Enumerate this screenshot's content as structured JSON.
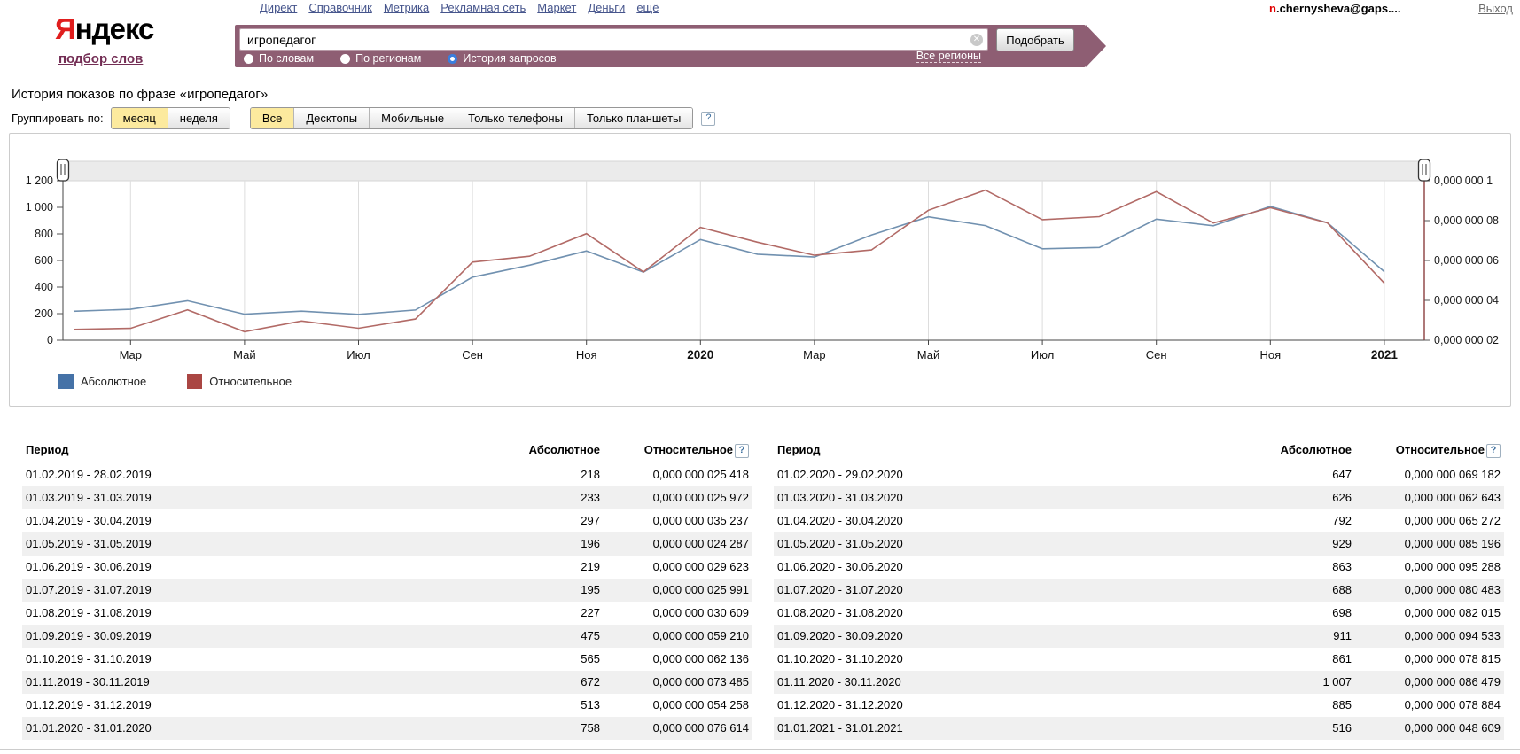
{
  "header": {
    "nav_links": [
      "Директ",
      "Справочник",
      "Метрика",
      "Рекламная сеть",
      "Маркет",
      "Деньги",
      "ещё"
    ],
    "account": {
      "email_prefix": "n",
      "email_rest": ".chernysheva@gaps....",
      "logout": "Выход"
    },
    "logo": {
      "first_letter": "Я",
      "rest": "ндекс",
      "sub_link": "подбор слов"
    }
  },
  "search": {
    "query": "игропедагог",
    "submit_label": "Подобрать",
    "regions_link": "Все регионы",
    "clear_icon": "✕",
    "radios": [
      {
        "label": "По словам",
        "selected": false
      },
      {
        "label": "По регионам",
        "selected": false
      },
      {
        "label": "История запросов",
        "selected": true
      }
    ]
  },
  "page": {
    "title": "История показов по фразе «игропедагог»"
  },
  "controls": {
    "group_label": "Группировать по:",
    "period_buttons": [
      {
        "label": "месяц",
        "selected": true
      },
      {
        "label": "неделя",
        "selected": false
      }
    ],
    "device_buttons": [
      {
        "label": "Все",
        "selected": true
      },
      {
        "label": "Десктопы",
        "selected": false
      },
      {
        "label": "Мобильные",
        "selected": false
      },
      {
        "label": "Только телефоны",
        "selected": false
      },
      {
        "label": "Только планшеты",
        "selected": false
      }
    ],
    "help_icon": "?"
  },
  "chart_data": {
    "type": "line",
    "categories": [
      "02.2019",
      "03.2019",
      "04.2019",
      "05.2019",
      "06.2019",
      "07.2019",
      "08.2019",
      "09.2019",
      "10.2019",
      "11.2019",
      "12.2019",
      "01.2020",
      "02.2020",
      "03.2020",
      "04.2020",
      "05.2020",
      "06.2020",
      "07.2020",
      "08.2020",
      "09.2020",
      "10.2020",
      "11.2020",
      "12.2020",
      "01.2021"
    ],
    "series": [
      {
        "name": "Абсолютное",
        "axis": "left",
        "color": "#7191b0",
        "legend_color": "#4572a7",
        "values": [
          218,
          233,
          297,
          196,
          219,
          195,
          227,
          475,
          565,
          672,
          513,
          758,
          647,
          626,
          792,
          929,
          863,
          688,
          698,
          911,
          861,
          1007,
          885,
          516
        ]
      },
      {
        "name": "Относительное",
        "axis": "right",
        "color": "#b26a66",
        "legend_color": "#aa4643",
        "values_x1e9": [
          25.418,
          25.972,
          35.237,
          24.287,
          29.623,
          25.991,
          30.609,
          59.21,
          62.136,
          73.485,
          54.258,
          76.614,
          69.182,
          62.643,
          65.272,
          85.196,
          95.288,
          80.483,
          82.015,
          94.533,
          78.815,
          86.479,
          78.884,
          48.609
        ]
      }
    ],
    "left_axis": {
      "min": 0,
      "max": 1200,
      "tick_labels": [
        "0",
        "200",
        "400",
        "600",
        "800",
        "1 000",
        "1 200"
      ]
    },
    "right_axis": {
      "min_x1e9": 20,
      "max_x1e9": 100,
      "tick_labels": [
        "0,000 000 02",
        "0,000 000 04",
        "0,000 000 06",
        "0,000 000 08",
        "0,000 000 1"
      ]
    },
    "x_ticks": [
      {
        "index": 1,
        "label": "Мар"
      },
      {
        "index": 3,
        "label": "Май"
      },
      {
        "index": 5,
        "label": "Июл"
      },
      {
        "index": 7,
        "label": "Сен"
      },
      {
        "index": 9,
        "label": "Ноя"
      },
      {
        "index": 11,
        "label": "2020",
        "bold": true
      },
      {
        "index": 13,
        "label": "Мар"
      },
      {
        "index": 15,
        "label": "Май"
      },
      {
        "index": 17,
        "label": "Июл"
      },
      {
        "index": 19,
        "label": "Сен"
      },
      {
        "index": 21,
        "label": "Ноя"
      },
      {
        "index": 23,
        "label": "2021",
        "bold": true
      }
    ],
    "grid": true,
    "legend_position": "bottom-left"
  },
  "tables": [
    {
      "headers": {
        "period": "Период",
        "abs": "Абсолютное",
        "rel": "Относительное"
      },
      "rows": [
        [
          "01.02.2019 - 28.02.2019",
          "218",
          "0,000 000 025 418"
        ],
        [
          "01.03.2019 - 31.03.2019",
          "233",
          "0,000 000 025 972"
        ],
        [
          "01.04.2019 - 30.04.2019",
          "297",
          "0,000 000 035 237"
        ],
        [
          "01.05.2019 - 31.05.2019",
          "196",
          "0,000 000 024 287"
        ],
        [
          "01.06.2019 - 30.06.2019",
          "219",
          "0,000 000 029 623"
        ],
        [
          "01.07.2019 - 31.07.2019",
          "195",
          "0,000 000 025 991"
        ],
        [
          "01.08.2019 - 31.08.2019",
          "227",
          "0,000 000 030 609"
        ],
        [
          "01.09.2019 - 30.09.2019",
          "475",
          "0,000 000 059 210"
        ],
        [
          "01.10.2019 - 31.10.2019",
          "565",
          "0,000 000 062 136"
        ],
        [
          "01.11.2019 - 30.11.2019",
          "672",
          "0,000 000 073 485"
        ],
        [
          "01.12.2019 - 31.12.2019",
          "513",
          "0,000 000 054 258"
        ],
        [
          "01.01.2020 - 31.01.2020",
          "758",
          "0,000 000 076 614"
        ]
      ]
    },
    {
      "headers": {
        "period": "Период",
        "abs": "Абсолютное",
        "rel": "Относительное"
      },
      "rows": [
        [
          "01.02.2020 - 29.02.2020",
          "647",
          "0,000 000 069 182"
        ],
        [
          "01.03.2020 - 31.03.2020",
          "626",
          "0,000 000 062 643"
        ],
        [
          "01.04.2020 - 30.04.2020",
          "792",
          "0,000 000 065 272"
        ],
        [
          "01.05.2020 - 31.05.2020",
          "929",
          "0,000 000 085 196"
        ],
        [
          "01.06.2020 - 30.06.2020",
          "863",
          "0,000 000 095 288"
        ],
        [
          "01.07.2020 - 31.07.2020",
          "688",
          "0,000 000 080 483"
        ],
        [
          "01.08.2020 - 31.08.2020",
          "698",
          "0,000 000 082 015"
        ],
        [
          "01.09.2020 - 30.09.2020",
          "911",
          "0,000 000 094 533"
        ],
        [
          "01.10.2020 - 31.10.2020",
          "861",
          "0,000 000 078 815"
        ],
        [
          "01.11.2020 - 30.11.2020",
          "1 007",
          "0,000 000 086 479"
        ],
        [
          "01.12.2020 - 31.12.2020",
          "885",
          "0,000 000 078 884"
        ],
        [
          "01.01.2021 - 31.01.2021",
          "516",
          "0,000 000 048 609"
        ]
      ]
    }
  ],
  "colors": {
    "band": "#8e5e73",
    "abs_line": "#7191b0",
    "rel_line": "#b26a66",
    "abs_legend": "#4572a7",
    "rel_legend": "#aa4643",
    "right_axis": "#8c3f3f",
    "selected_button_bg": "#fcea9e",
    "row_stripe": "#f0f0f0"
  }
}
